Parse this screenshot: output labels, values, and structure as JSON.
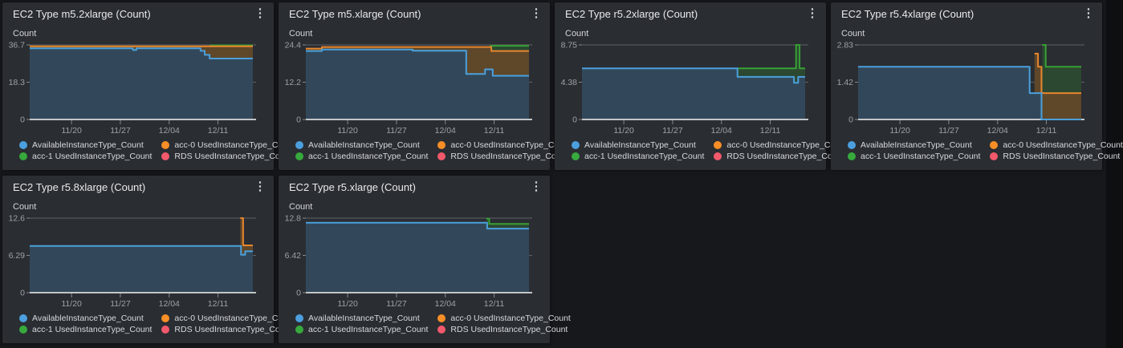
{
  "menu_icon": "⋮",
  "colors": {
    "page_bg": "#16181c",
    "panel_bg": "#2a2d32",
    "title_text": "#e8eaeb",
    "axis_label_text": "#d2d5d8",
    "tick_label_text": "#9ea2a6",
    "legend_text": "#d7dadd",
    "gridline": "#5e6165",
    "baseline": "#c2c5c7",
    "tick_mark": "#85888b",
    "series": {
      "blue": {
        "stroke": "#4ba0dc",
        "fill": "#32485a",
        "dot": "#4c9fde"
      },
      "orange": {
        "stroke": "#e8872d",
        "fill": "#5f472a",
        "dot": "#f78e26"
      },
      "green": {
        "stroke": "#37a134",
        "fill": "#2c4831",
        "dot": "#37a93d"
      },
      "red": {
        "stroke": "#f2596b",
        "fill": "#5a3038",
        "dot": "#f2596b"
      }
    }
  },
  "legend": [
    {
      "label": "AvailableInstanceType_Count",
      "color": "blue"
    },
    {
      "label": "acc-0 UsedInstanceType_Count",
      "color": "orange"
    },
    {
      "label": "acc-1 UsedInstanceType_Count",
      "color": "green"
    },
    {
      "label": "RDS UsedInstanceType_Count",
      "color": "red"
    }
  ],
  "x_axis": {
    "tick_labels": [
      "11/20",
      "11/27",
      "12/04",
      "12/11"
    ],
    "tick_days": [
      6,
      13,
      20,
      27
    ],
    "domain_days": [
      0,
      32
    ],
    "note": "x is days; day 0 = left edge (~Nov 14), day 32 = right edge (~Dec 16)"
  },
  "chart_data": [
    {
      "type": "area",
      "title": "EC2 Type m5.2xlarge (Count)",
      "ylabel": "Count",
      "ymax": 36.7,
      "y_ticks": [
        "36.7",
        "18.3",
        "0"
      ],
      "series": [
        {
          "color": "blue",
          "name": "AvailableInstanceType_Count",
          "points": [
            [
              0,
              35
            ],
            [
              14.8,
              34.2
            ],
            [
              15.3,
              35
            ],
            [
              24.5,
              33.8
            ],
            [
              25.1,
              31.8
            ],
            [
              25.8,
              30
            ],
            [
              32,
              30
            ]
          ]
        },
        {
          "color": "orange",
          "name": "acc-0 UsedInstanceType_Count",
          "points": [
            [
              0,
              36
            ],
            [
              32,
              36
            ]
          ]
        },
        {
          "color": "green",
          "name": "acc-1 UsedInstanceType_Count",
          "points": [
            [
              25.8,
              36.5
            ],
            [
              32,
              36.5
            ]
          ]
        }
      ]
    },
    {
      "type": "area",
      "title": "EC2 Type m5.xlarge (Count)",
      "ylabel": "Count",
      "ymax": 24.4,
      "y_ticks": [
        "24.4",
        "12.2",
        "0"
      ],
      "series": [
        {
          "color": "blue",
          "name": "AvailableInstanceType_Count",
          "points": [
            [
              0,
              22.4
            ],
            [
              2.3,
              22.9
            ],
            [
              15.3,
              22.5
            ],
            [
              23,
              14.9
            ],
            [
              25.7,
              16.4
            ],
            [
              26.8,
              14.3
            ],
            [
              32,
              14.3
            ]
          ]
        },
        {
          "color": "orange",
          "name": "acc-0 UsedInstanceType_Count",
          "points": [
            [
              0,
              23.2
            ],
            [
              2.3,
              23.7
            ],
            [
              26.6,
              22.4
            ],
            [
              32,
              22.4
            ]
          ]
        },
        {
          "color": "green",
          "name": "acc-1 UsedInstanceType_Count",
          "points": [
            [
              26.4,
              24.1
            ],
            [
              32,
              24.1
            ]
          ]
        }
      ]
    },
    {
      "type": "area",
      "title": "EC2 Type r5.2xlarge (Count)",
      "ylabel": "Count",
      "ymax": 8.75,
      "y_ticks": [
        "8.75",
        "4.38",
        "0"
      ],
      "series": [
        {
          "color": "blue",
          "name": "AvailableInstanceType_Count",
          "points": [
            [
              0,
              6
            ],
            [
              22.3,
              5
            ],
            [
              30.4,
              4.3
            ],
            [
              31,
              5
            ],
            [
              32,
              5
            ]
          ]
        },
        {
          "color": "green",
          "name": "acc-1 UsedInstanceType_Count",
          "points": [
            [
              22.3,
              6
            ],
            [
              30.7,
              8.75
            ],
            [
              31.2,
              6
            ],
            [
              32,
              6
            ]
          ]
        }
      ]
    },
    {
      "type": "area",
      "title": "EC2 Type r5.4xlarge (Count)",
      "ylabel": "Count",
      "ymax": 2.83,
      "y_ticks": [
        "2.83",
        "1.42",
        "0"
      ],
      "series": [
        {
          "color": "blue",
          "name": "AvailableInstanceType_Count",
          "points": [
            [
              0,
              2
            ],
            [
              24.6,
              1
            ],
            [
              26.3,
              0
            ],
            [
              32,
              0
            ]
          ]
        },
        {
          "color": "orange",
          "name": "acc-0 UsedInstanceType_Count",
          "points": [
            [
              25.3,
              2.5
            ],
            [
              25.8,
              2
            ],
            [
              26.3,
              1
            ],
            [
              32,
              1
            ]
          ]
        },
        {
          "color": "green",
          "name": "acc-1 UsedInstanceType_Count",
          "points": [
            [
              26.4,
              2.83
            ],
            [
              26.9,
              2
            ],
            [
              32,
              2
            ]
          ]
        }
      ]
    },
    {
      "type": "area",
      "title": "EC2 Type r5.8xlarge (Count)",
      "ylabel": "Count",
      "ymax": 12.6,
      "y_ticks": [
        "12.6",
        "6.29",
        "0"
      ],
      "series": [
        {
          "color": "blue",
          "name": "AvailableInstanceType_Count",
          "points": [
            [
              0,
              7.9
            ],
            [
              30.3,
              6.4
            ],
            [
              30.9,
              7
            ],
            [
              32,
              7
            ]
          ]
        },
        {
          "color": "orange",
          "name": "acc-0 UsedInstanceType_Count",
          "points": [
            [
              30.2,
              12.6
            ],
            [
              30.6,
              8
            ],
            [
              32,
              8
            ]
          ]
        }
      ]
    },
    {
      "type": "area",
      "title": "EC2 Type r5.xlarge (Count)",
      "ylabel": "Count",
      "ymax": 12.8,
      "y_ticks": [
        "12.8",
        "6.42",
        "0"
      ],
      "series": [
        {
          "color": "blue",
          "name": "AvailableInstanceType_Count",
          "points": [
            [
              0,
              12
            ],
            [
              26,
              11
            ],
            [
              32,
              11
            ]
          ]
        },
        {
          "color": "green",
          "name": "acc-1 UsedInstanceType_Count",
          "points": [
            [
              25.9,
              12.7
            ],
            [
              26.3,
              11.8
            ],
            [
              32,
              11.8
            ]
          ]
        }
      ]
    }
  ]
}
